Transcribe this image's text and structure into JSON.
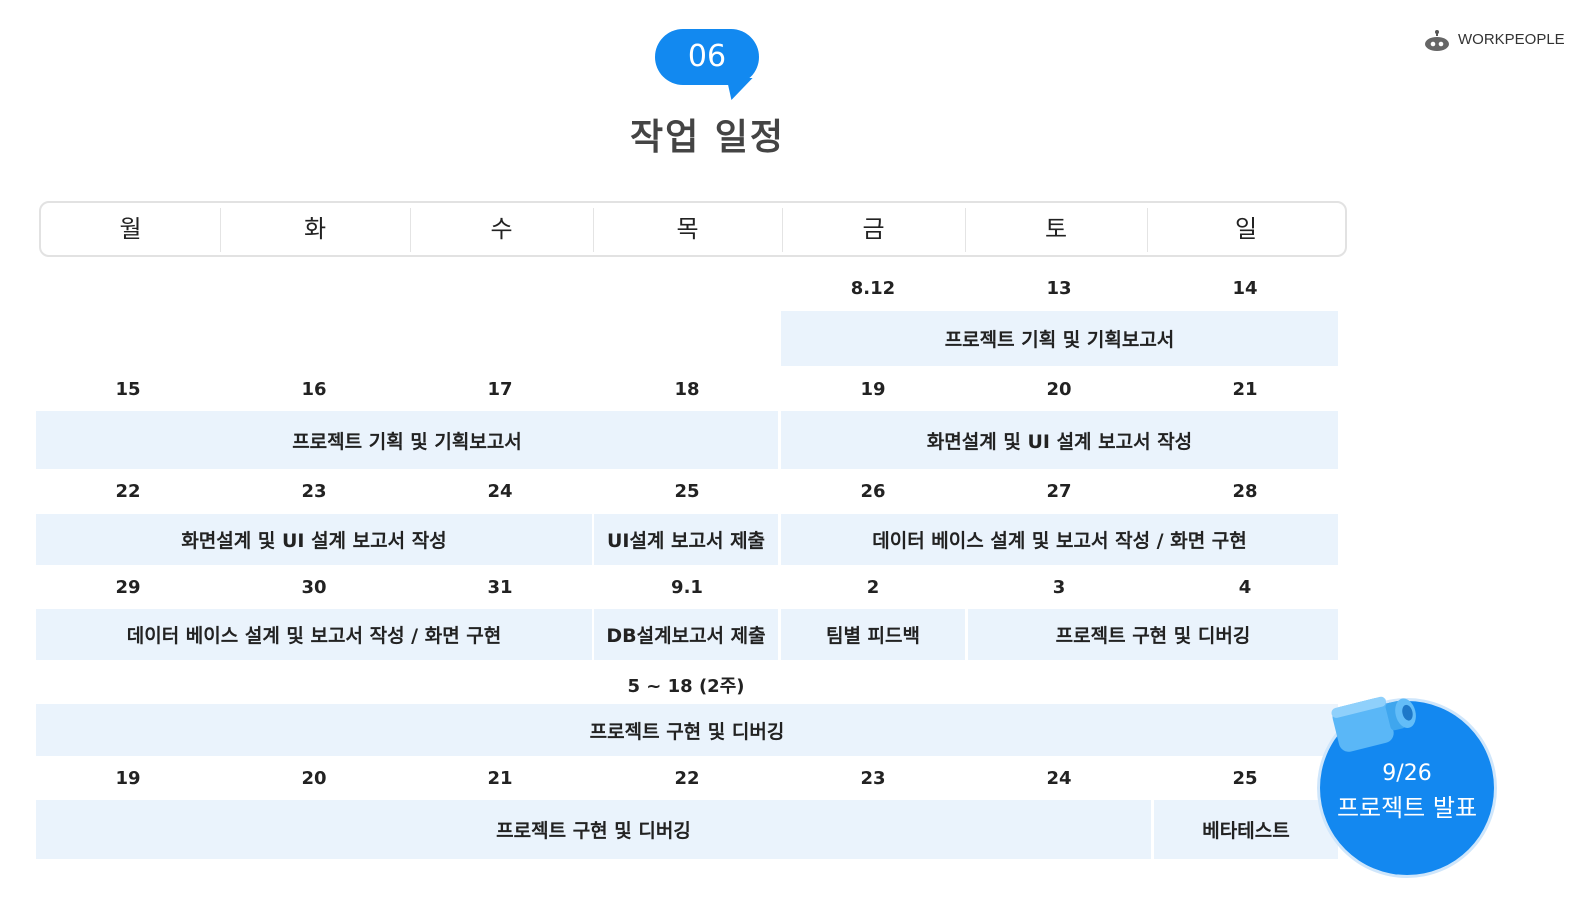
{
  "header": {
    "section_number": "06",
    "title": "작업 일정",
    "brand": "WORKPEOPLE"
  },
  "weekdays": [
    "월",
    "화",
    "수",
    "목",
    "금",
    "토",
    "일"
  ],
  "dates": {
    "row1": [
      "8.12",
      "13",
      "14"
    ],
    "row2": [
      "15",
      "16",
      "17",
      "18",
      "19",
      "20",
      "21"
    ],
    "row3": [
      "22",
      "23",
      "24",
      "25",
      "26",
      "27",
      "28"
    ],
    "row4": [
      "29",
      "30",
      "31",
      "9.1",
      "2",
      "3",
      "4"
    ],
    "range": "5 ~ 18 (2주)",
    "row6": [
      "19",
      "20",
      "21",
      "22",
      "23",
      "24",
      "25"
    ]
  },
  "tasks": {
    "r1": "프로젝트 기획 및 기획보고서",
    "r2a": "프로젝트 기획 및 기획보고서",
    "r2b": "화면설계 및 UI 설계 보고서 작성",
    "r3a": "화면설계 및 UI 설계 보고서 작성",
    "r3b": "UI설계 보고서 제출",
    "r3c": "데이터 베이스 설계 및 보고서 작성 / 화면 구현",
    "r4a": "데이터 베이스 설계 및 보고서 작성 / 화면 구현",
    "r4b": "DB설계보고서 제출",
    "r4c": "팀별 피드백",
    "r4d": "프로젝트 구현 및 디버깅",
    "r5": "프로젝트 구현 및 디버깅",
    "r6a": "프로젝트 구현 및 디버깅",
    "r6b": "베타테스트"
  },
  "announcement": {
    "date": "9/26",
    "label": "프로젝트 발표"
  },
  "colors": {
    "accent": "#1289f0",
    "band": "#eaf3fc"
  },
  "icons": {
    "brand": "robot-icon",
    "decor": "camera-icon"
  }
}
